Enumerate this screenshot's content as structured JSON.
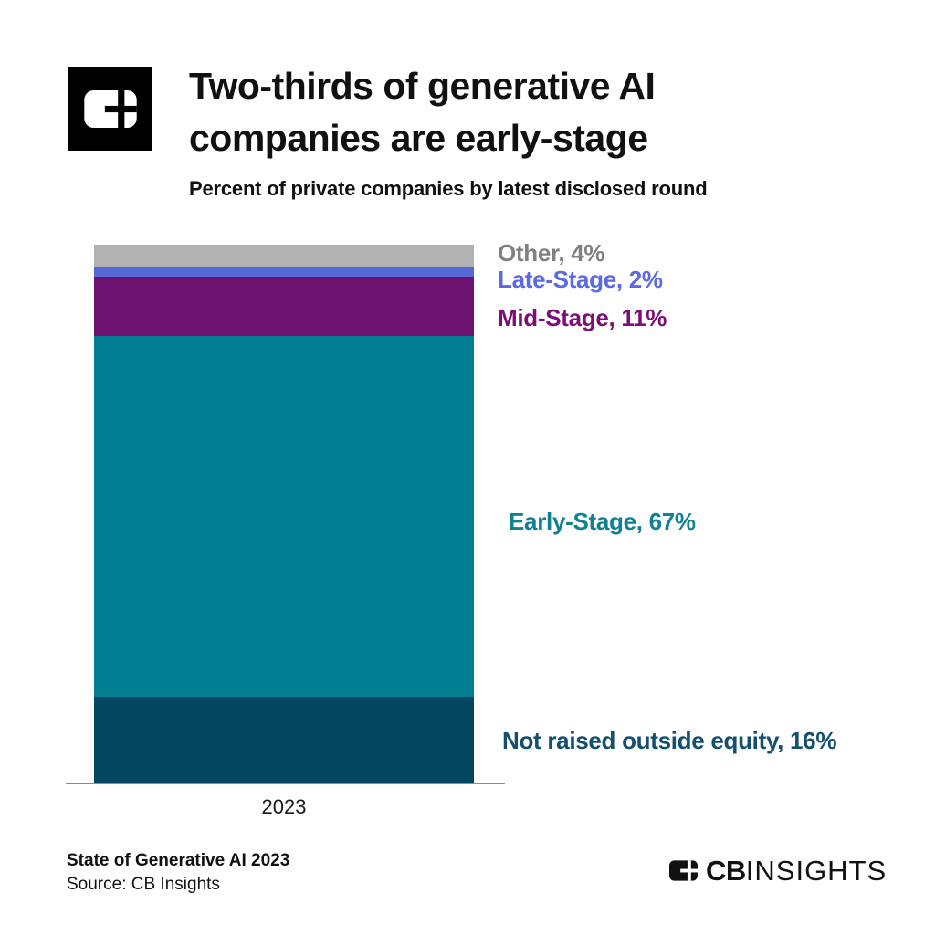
{
  "header": {
    "title_line1": "Two-thirds of generative AI",
    "title_line2": "companies are early-stage",
    "subtitle": "Percent of private companies by latest disclosed round"
  },
  "chart_data": {
    "type": "bar",
    "stacked": true,
    "orientation": "vertical",
    "title": "Two-thirds of generative AI companies are early-stage",
    "subtitle": "Percent of private companies by latest disclosed round",
    "categories": [
      "2023"
    ],
    "unit": "%",
    "ylim": [
      0,
      100
    ],
    "grid": false,
    "legend_position": "inline-right-labels",
    "series_order": "top-to-bottom",
    "series": [
      {
        "name": "Other",
        "values": [
          4
        ],
        "color": "#b2b2b2",
        "label": "Other, 4%",
        "label_color": "#808080"
      },
      {
        "name": "Late-Stage",
        "values": [
          2
        ],
        "color": "#5667d6",
        "label": "Late-Stage, 2%",
        "label_color": "#5a6ae0"
      },
      {
        "name": "Mid-Stage",
        "values": [
          11
        ],
        "color": "#6e1272",
        "label": "Mid-Stage, 11%",
        "label_color": "#7a1077"
      },
      {
        "name": "Early-Stage",
        "values": [
          67
        ],
        "color": "#017e91",
        "label": "Early-Stage, 67%",
        "label_color": "#0f8193"
      },
      {
        "name": "Not raised outside equity",
        "values": [
          16
        ],
        "color": "#02465f",
        "label": "Not raised outside equity, 16%",
        "label_color": "#134f6e"
      }
    ]
  },
  "footer": {
    "left_line1": "State of Generative AI 2023",
    "left_line2": "Source: CB Insights",
    "brand_bold": "CB",
    "brand_light": "INSIGHTS"
  },
  "colors": {
    "background": "#ffffff",
    "logo_black": "#000000",
    "axis_line": "#8c8c8c",
    "text": "#111111"
  }
}
